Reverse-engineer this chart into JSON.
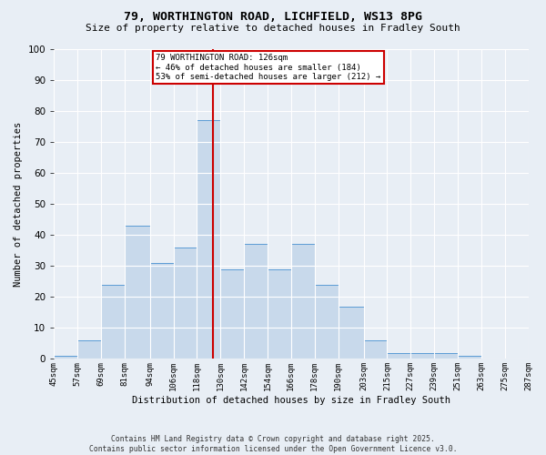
{
  "title1": "79, WORTHINGTON ROAD, LICHFIELD, WS13 8PG",
  "title2": "Size of property relative to detached houses in Fradley South",
  "xlabel": "Distribution of detached houses by size in Fradley South",
  "ylabel": "Number of detached properties",
  "bar_values": [
    1,
    6,
    24,
    43,
    31,
    36,
    77,
    29,
    37,
    29,
    37,
    24,
    17,
    6,
    2,
    2,
    2,
    1,
    0,
    0
  ],
  "bin_labels": [
    "45sqm",
    "57sqm",
    "69sqm",
    "81sqm",
    "94sqm",
    "106sqm",
    "118sqm",
    "130sqm",
    "142sqm",
    "154sqm",
    "166sqm",
    "178sqm",
    "190sqm",
    "203sqm",
    "215sqm",
    "227sqm",
    "239sqm",
    "251sqm",
    "263sqm",
    "275sqm",
    "287sqm"
  ],
  "bar_color": "#c8d9eb",
  "bar_edge_color": "#5b9bd5",
  "background_color": "#e8eef5",
  "grid_color": "#ffffff",
  "property_line_x": 126,
  "bin_edges": [
    45,
    57,
    69,
    81,
    94,
    106,
    118,
    130,
    142,
    154,
    166,
    178,
    190,
    203,
    215,
    227,
    239,
    251,
    263,
    275,
    287
  ],
  "annotation_title": "79 WORTHINGTON ROAD: 126sqm",
  "annotation_line1": "← 46% of detached houses are smaller (184)",
  "annotation_line2": "53% of semi-detached houses are larger (212) →",
  "annotation_box_color": "#ffffff",
  "annotation_border_color": "#cc0000",
  "vline_color": "#cc0000",
  "ylim": [
    0,
    100
  ],
  "yticks": [
    0,
    10,
    20,
    30,
    40,
    50,
    60,
    70,
    80,
    90,
    100
  ],
  "footer1": "Contains HM Land Registry data © Crown copyright and database right 2025.",
  "footer2": "Contains public sector information licensed under the Open Government Licence v3.0."
}
